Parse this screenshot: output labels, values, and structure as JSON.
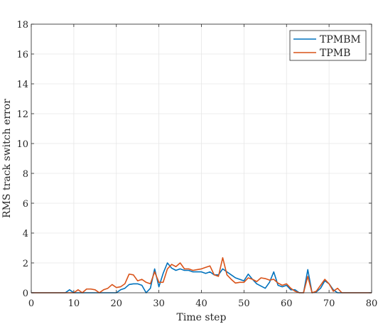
{
  "chart_data": {
    "type": "line",
    "xlabel": "Time step",
    "ylabel": "RMS track switch error",
    "xlim": [
      0,
      80
    ],
    "ylim": [
      0,
      18
    ],
    "xticks": [
      "0",
      "10",
      "20",
      "30",
      "40",
      "50",
      "60",
      "70",
      "80"
    ],
    "yticks": [
      "0",
      "2",
      "4",
      "6",
      "8",
      "10",
      "12",
      "14",
      "16",
      "18"
    ],
    "grid": true,
    "legend_position": "top-right",
    "series": [
      {
        "name": "TPMBM",
        "color": "#0072BD",
        "x": [
          0,
          1,
          2,
          3,
          4,
          5,
          6,
          7,
          8,
          9,
          10,
          11,
          12,
          13,
          14,
          15,
          16,
          17,
          18,
          19,
          20,
          21,
          22,
          23,
          24,
          25,
          26,
          27,
          28,
          29,
          30,
          31,
          32,
          33,
          34,
          35,
          36,
          37,
          38,
          39,
          40,
          41,
          42,
          43,
          44,
          45,
          46,
          47,
          48,
          49,
          50,
          51,
          52,
          53,
          54,
          55,
          56,
          57,
          58,
          59,
          60,
          61,
          62,
          63,
          64,
          65,
          66,
          67,
          68,
          69,
          70,
          71,
          72,
          73,
          74,
          75,
          76,
          77,
          78,
          79,
          80
        ],
        "y": [
          0,
          0,
          0,
          0,
          0,
          0,
          0,
          0,
          0,
          0.2,
          0,
          0,
          0,
          0,
          0,
          0,
          0,
          0,
          0,
          0,
          0,
          0.2,
          0.3,
          0.55,
          0.6,
          0.6,
          0.5,
          0,
          0.3,
          1.6,
          0.4,
          1.3,
          2.0,
          1.65,
          1.5,
          1.6,
          1.5,
          1.5,
          1.4,
          1.4,
          1.4,
          1.3,
          1.4,
          1.2,
          1.2,
          1.6,
          1.4,
          1.2,
          1.0,
          0.9,
          0.8,
          1.25,
          0.9,
          0.6,
          0.45,
          0.3,
          0.7,
          1.4,
          0.5,
          0.4,
          0.5,
          0.2,
          0.2,
          0,
          0,
          1.55,
          0,
          0.05,
          0.3,
          0.8,
          0.6,
          0.2,
          0,
          0,
          0,
          0,
          0,
          0,
          0,
          0,
          0
        ]
      },
      {
        "name": "TPMB",
        "color": "#D95319",
        "x": [
          0,
          1,
          2,
          3,
          4,
          5,
          6,
          7,
          8,
          9,
          10,
          11,
          12,
          13,
          14,
          15,
          16,
          17,
          18,
          19,
          20,
          21,
          22,
          23,
          24,
          25,
          26,
          27,
          28,
          29,
          30,
          31,
          32,
          33,
          34,
          35,
          36,
          37,
          38,
          39,
          40,
          41,
          42,
          43,
          44,
          45,
          46,
          47,
          48,
          49,
          50,
          51,
          52,
          53,
          54,
          55,
          56,
          57,
          58,
          59,
          60,
          61,
          62,
          63,
          64,
          65,
          66,
          67,
          68,
          69,
          70,
          71,
          72,
          73,
          74,
          75,
          76,
          77,
          78,
          79,
          80
        ],
        "y": [
          0,
          0,
          0,
          0,
          0,
          0,
          0,
          0,
          0,
          0,
          0,
          0.2,
          0,
          0.25,
          0.25,
          0.2,
          0,
          0.2,
          0.3,
          0.55,
          0.35,
          0.4,
          0.6,
          1.25,
          1.2,
          0.8,
          0.9,
          0.7,
          0.6,
          1.4,
          0.7,
          0.7,
          1.6,
          1.9,
          1.75,
          2.0,
          1.6,
          1.6,
          1.5,
          1.55,
          1.6,
          1.7,
          1.8,
          1.2,
          1.1,
          2.35,
          1.2,
          0.9,
          0.65,
          0.7,
          0.7,
          1.0,
          0.9,
          0.75,
          1.0,
          0.95,
          0.85,
          0.9,
          0.65,
          0.5,
          0.6,
          0.3,
          0.1,
          0,
          0,
          1.1,
          0,
          0.1,
          0.5,
          0.9,
          0.6,
          0.1,
          0.3,
          0,
          0,
          0,
          0,
          0,
          0,
          0,
          0
        ]
      }
    ]
  }
}
